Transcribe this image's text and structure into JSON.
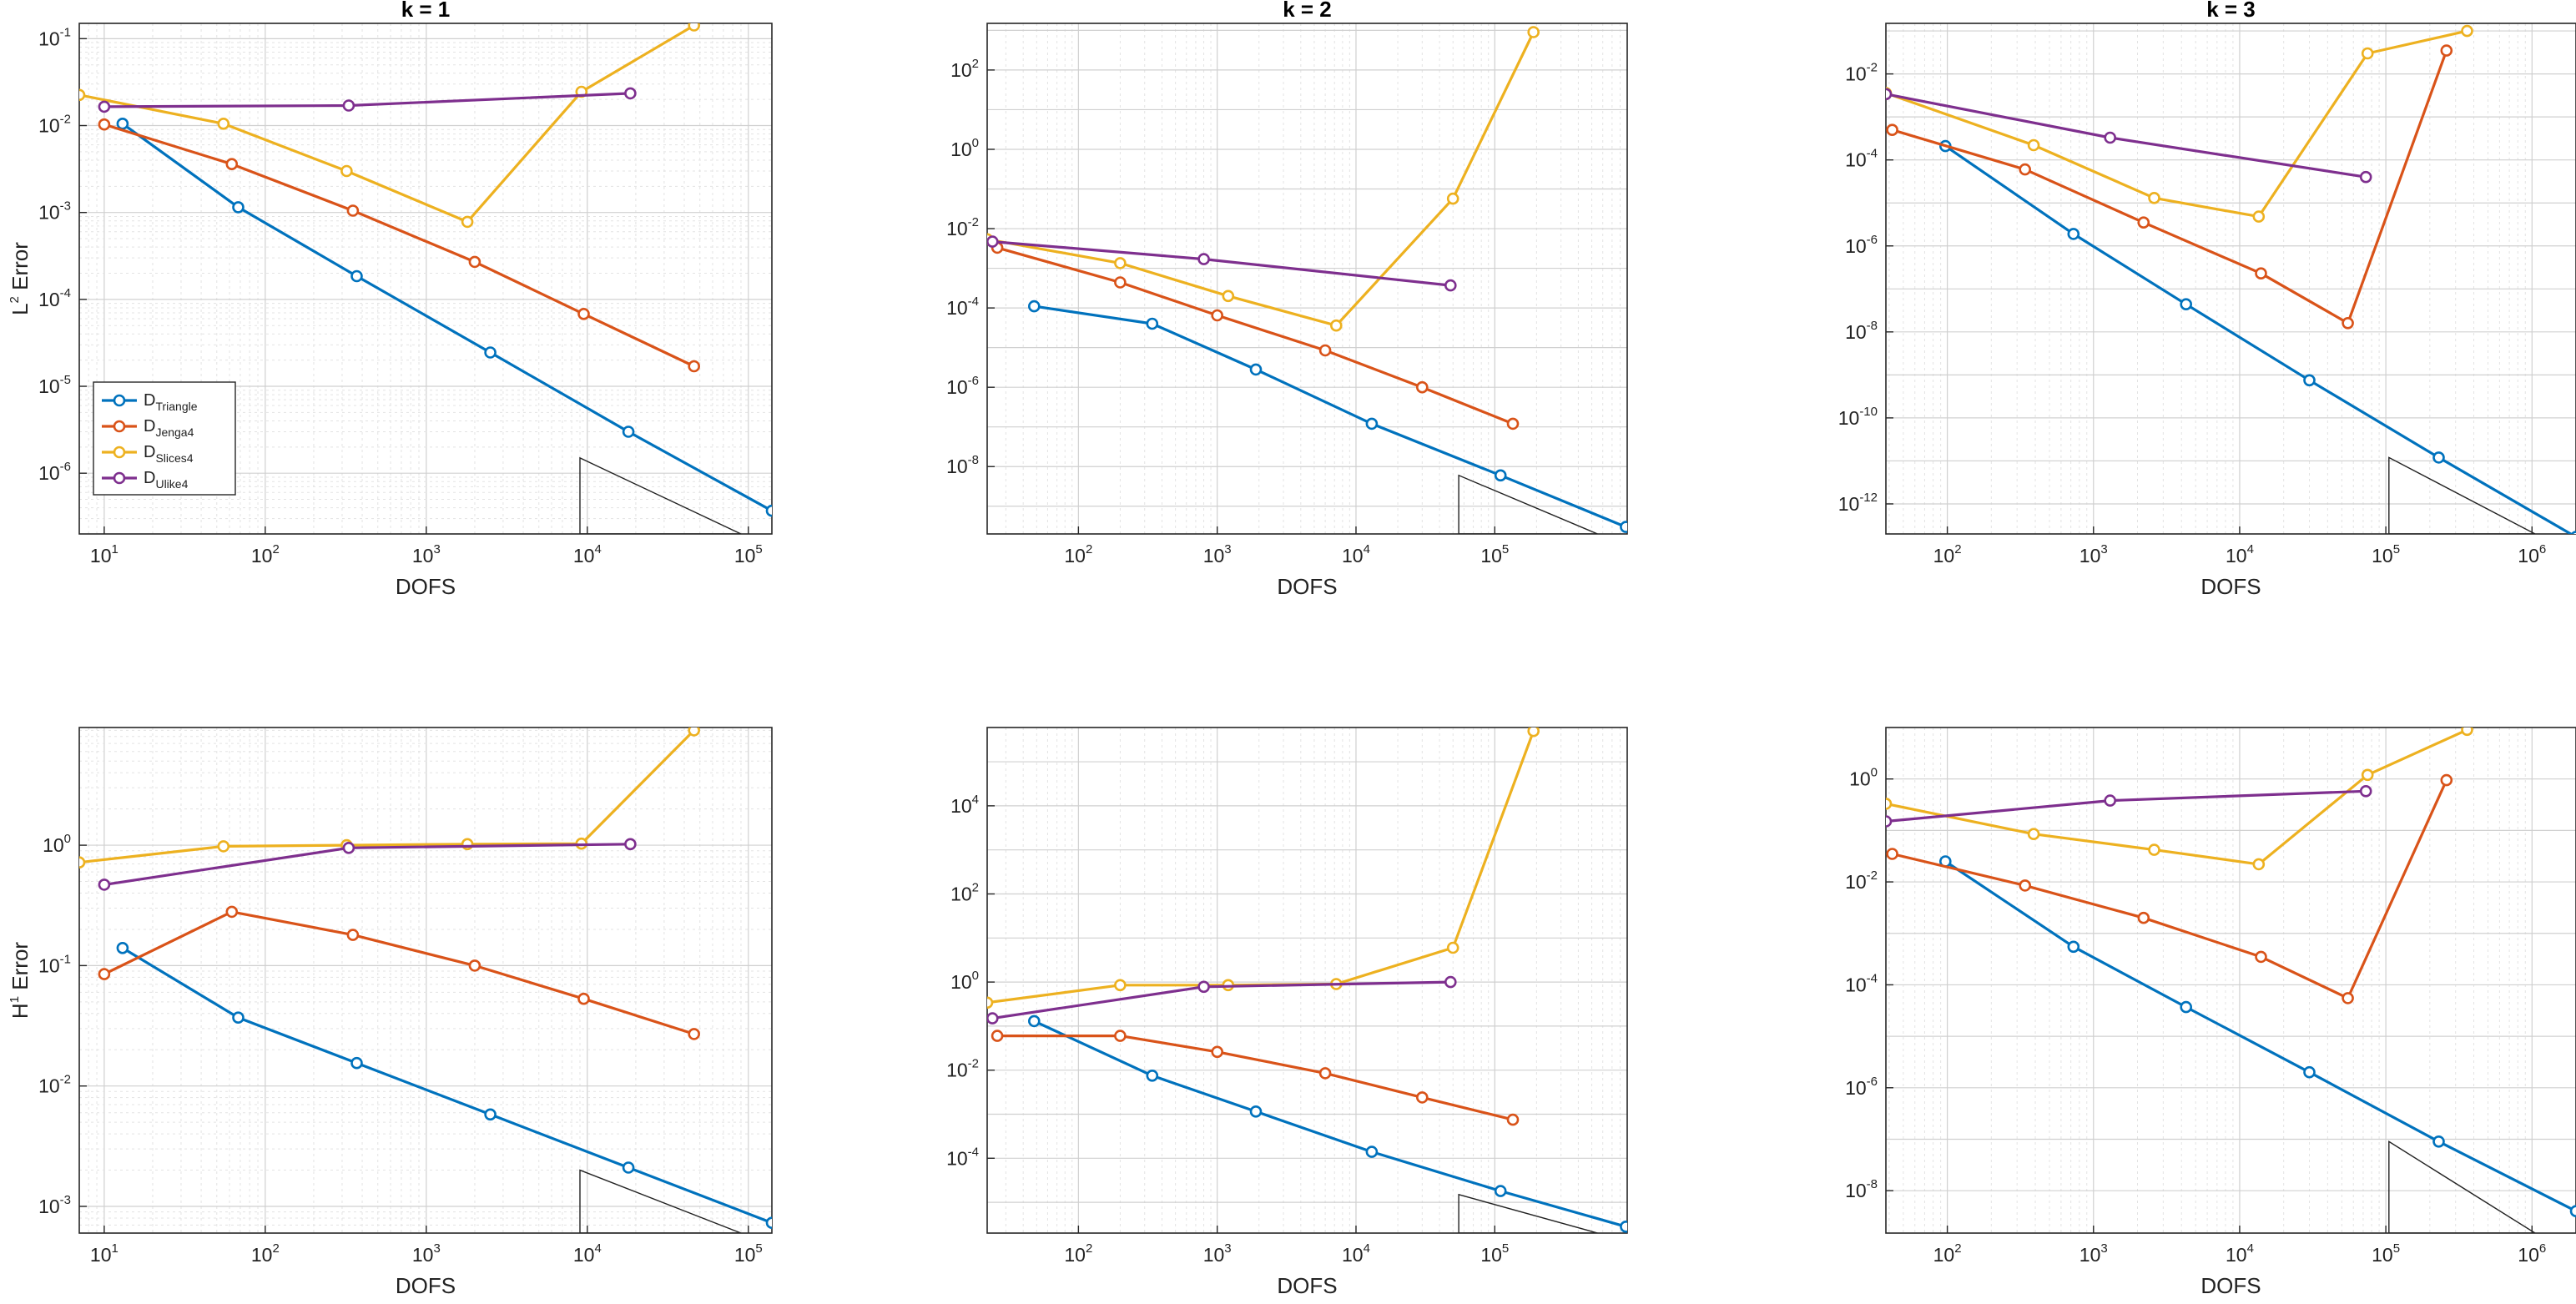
{
  "colors": {
    "D_Triangle": "#0072BD",
    "D_Jenga4": "#D95319",
    "D_Slices4": "#EDB120",
    "D_Ulike4": "#7E2F8E",
    "grid": "#e3e3e3",
    "axis": "#262626"
  },
  "legend": {
    "placement": "lower-left of top-left panel",
    "entries": [
      {
        "key": "D_Triangle",
        "base": "D",
        "sub": "Triangle"
      },
      {
        "key": "D_Jenga4",
        "base": "D",
        "sub": "Jenga4"
      },
      {
        "key": "D_Slices4",
        "base": "D",
        "sub": "Slices4"
      },
      {
        "key": "D_Ulike4",
        "base": "D",
        "sub": "Ulike4"
      }
    ]
  },
  "chart_data": [
    {
      "type": "line",
      "title": "k = 1",
      "xlabel": "DOFS",
      "ylabel": "L² Error",
      "ylabel_base": "L",
      "ylabel_sup": "2",
      "ylabel_rest": " Error",
      "xscale": "log",
      "yscale": "log",
      "grid": true,
      "xlim": [
        7,
        140000
      ],
      "ylim": [
        2e-07,
        0.15
      ],
      "xticks": [
        10,
        100,
        1000,
        10000,
        100000
      ],
      "yticks": [
        1e-06,
        1e-05,
        0.0001,
        0.001,
        0.01,
        0.1
      ],
      "slope_triangle": {
        "x0": 9000,
        "x1": 90000,
        "y_top": 1.5e-06,
        "y_bottom": 2e-07
      },
      "series": [
        {
          "key": "D_Triangle",
          "x": [
            13,
            68,
            370,
            2500,
            18000,
            140000
          ],
          "y": [
            0.0105,
            0.00115,
            0.000185,
            2.45e-05,
            3e-06,
            3.7e-07
          ]
        },
        {
          "key": "D_Jenga4",
          "x": [
            10,
            62,
            350,
            2000,
            9500,
            46000
          ],
          "y": [
            0.0103,
            0.0036,
            0.00105,
            0.00027,
            6.8e-05,
            1.7e-05
          ]
        },
        {
          "key": "D_Slices4",
          "x": [
            7,
            55,
            320,
            1800,
            9200,
            46000
          ],
          "y": [
            0.0225,
            0.0105,
            0.003,
            0.00078,
            0.0245,
            0.142
          ]
        },
        {
          "key": "D_Ulike4",
          "x": [
            10,
            330,
            18500
          ],
          "y": [
            0.0165,
            0.017,
            0.0235
          ]
        }
      ]
    },
    {
      "type": "line",
      "title": "k = 2",
      "xlabel": "DOFS",
      "ylabel": "",
      "xscale": "log",
      "yscale": "log",
      "grid": true,
      "xlim": [
        22,
        900000
      ],
      "ylim": [
        2e-10,
        1500
      ],
      "xticks": [
        100,
        1000,
        10000,
        100000
      ],
      "yticks": [
        1e-08,
        1e-06,
        0.0001,
        0.01,
        1,
        100
      ],
      "slope_triangle": {
        "x0": 55000,
        "x1": 550000,
        "y_top": 6e-09,
        "y_bottom": 2e-10
      },
      "series": [
        {
          "key": "D_Triangle",
          "x": [
            48,
            340,
            1900,
            13000,
            110000,
            880000
          ],
          "y": [
            0.00011,
            4e-05,
            2.8e-06,
            1.2e-07,
            6e-09,
            3e-10
          ]
        },
        {
          "key": "D_Jenga4",
          "x": [
            26,
            200,
            1000,
            6000,
            30000,
            135000
          ],
          "y": [
            0.0033,
            0.00044,
            6.5e-05,
            8.5e-06,
            1e-06,
            1.2e-07
          ]
        },
        {
          "key": "D_Slices4",
          "x": [
            22,
            200,
            1200,
            7200,
            50000,
            190000
          ],
          "y": [
            0.0054,
            0.00135,
            0.0002,
            3.6e-05,
            0.057,
            900
          ]
        },
        {
          "key": "D_Ulike4",
          "x": [
            24,
            800,
            48000
          ],
          "y": [
            0.0047,
            0.0017,
            0.00037
          ]
        }
      ]
    },
    {
      "type": "line",
      "title": "k = 3",
      "xlabel": "DOFS",
      "ylabel": "",
      "xscale": "log",
      "yscale": "log",
      "grid": true,
      "xlim": [
        38,
        2000000
      ],
      "ylim": [
        2e-13,
        0.15
      ],
      "xticks": [
        100,
        1000,
        10000,
        100000,
        1000000
      ],
      "yticks": [
        1e-12,
        1e-10,
        1e-08,
        1e-06,
        0.0001,
        0.01
      ],
      "slope_triangle": {
        "x0": 105000,
        "x1": 1050000,
        "y_top": 1.2e-11,
        "y_bottom": 2e-13
      },
      "series": [
        {
          "key": "D_Triangle",
          "x": [
            97,
            730,
            4300,
            30000,
            230000,
            2000000
          ],
          "y": [
            0.00021,
            1.9e-06,
            4.4e-08,
            7.5e-10,
            1.2e-11,
            1.7e-13
          ]
        },
        {
          "key": "D_Jenga4",
          "x": [
            42,
            340,
            2200,
            14000,
            55000,
            260000
          ],
          "y": [
            0.0005,
            6e-05,
            3.5e-06,
            2.3e-07,
            1.6e-08,
            0.035
          ]
        },
        {
          "key": "D_Slices4",
          "x": [
            38,
            390,
            2600,
            13500,
            75000,
            360000
          ],
          "y": [
            0.0036,
            0.00022,
            1.3e-05,
            4.8e-06,
            0.03,
            0.1
          ]
        },
        {
          "key": "D_Ulike4",
          "x": [
            38,
            1300,
            73000
          ],
          "y": [
            0.0034,
            0.00033,
            4e-05
          ]
        }
      ]
    },
    {
      "type": "line",
      "title": "",
      "xlabel": "DOFS",
      "ylabel": "H¹ Error",
      "ylabel_base": "H",
      "ylabel_sup": "1",
      "ylabel_rest": " Error",
      "xscale": "log",
      "yscale": "log",
      "grid": true,
      "xlim": [
        7,
        140000
      ],
      "ylim": [
        0.0006,
        9.5
      ],
      "xticks": [
        10,
        100,
        1000,
        10000,
        100000
      ],
      "yticks": [
        0.001,
        0.01,
        0.1,
        1
      ],
      "slope_triangle": {
        "x0": 9000,
        "x1": 90000,
        "y_top": 0.002,
        "y_bottom": 0.0006
      },
      "series": [
        {
          "key": "D_Triangle",
          "x": [
            13,
            68,
            370,
            2500,
            18000,
            140000
          ],
          "y": [
            0.14,
            0.037,
            0.0155,
            0.0058,
            0.0021,
            0.00073
          ]
        },
        {
          "key": "D_Jenga4",
          "x": [
            10,
            62,
            350,
            2000,
            9500,
            46000
          ],
          "y": [
            0.085,
            0.28,
            0.18,
            0.1,
            0.053,
            0.027
          ]
        },
        {
          "key": "D_Slices4",
          "x": [
            7,
            55,
            320,
            1800,
            9200,
            46000
          ],
          "y": [
            0.72,
            0.98,
            1,
            1.02,
            1.03,
            9
          ]
        },
        {
          "key": "D_Ulike4",
          "x": [
            10,
            330,
            18500
          ],
          "y": [
            0.47,
            0.95,
            1.02
          ]
        }
      ]
    },
    {
      "type": "line",
      "title": "",
      "xlabel": "DOFS",
      "ylabel": "",
      "xscale": "log",
      "yscale": "log",
      "grid": true,
      "xlim": [
        22,
        900000
      ],
      "ylim": [
        2e-06,
        600000
      ],
      "xticks": [
        100,
        1000,
        10000,
        100000
      ],
      "yticks": [
        0.0001,
        0.01,
        1,
        100,
        10000
      ],
      "slope_triangle": {
        "x0": 55000,
        "x1": 550000,
        "y_top": 1.5e-05,
        "y_bottom": 2e-06
      },
      "series": [
        {
          "key": "D_Triangle",
          "x": [
            48,
            340,
            1900,
            13000,
            110000,
            880000
          ],
          "y": [
            0.13,
            0.0075,
            0.00115,
            0.00014,
            1.8e-05,
            2.8e-06
          ]
        },
        {
          "key": "D_Jenga4",
          "x": [
            26,
            200,
            1000,
            6000,
            30000,
            135000
          ],
          "y": [
            0.06,
            0.06,
            0.026,
            0.0085,
            0.0024,
            0.00075
          ]
        },
        {
          "key": "D_Slices4",
          "x": [
            22,
            200,
            1200,
            7200,
            50000,
            190000
          ],
          "y": [
            0.34,
            0.85,
            0.85,
            0.9,
            6,
            500000
          ]
        },
        {
          "key": "D_Ulike4",
          "x": [
            24,
            800,
            48000
          ],
          "y": [
            0.15,
            0.78,
            1
          ]
        }
      ]
    },
    {
      "type": "line",
      "title": "",
      "xlabel": "DOFS",
      "ylabel": "",
      "xscale": "log",
      "yscale": "log",
      "grid": true,
      "xlim": [
        38,
        2000000
      ],
      "ylim": [
        1.5e-09,
        10
      ],
      "xticks": [
        100,
        1000,
        10000,
        100000,
        1000000
      ],
      "yticks": [
        1e-08,
        1e-06,
        0.0001,
        0.01,
        1
      ],
      "slope_triangle": {
        "x0": 105000,
        "x1": 1050000,
        "y_top": 9e-08,
        "y_bottom": 1.5e-09
      },
      "series": [
        {
          "key": "D_Triangle",
          "x": [
            97,
            730,
            4300,
            30000,
            230000,
            2000000
          ],
          "y": [
            0.025,
            0.00055,
            3.7e-05,
            2e-06,
            9e-08,
            4e-09
          ]
        },
        {
          "key": "D_Jenga4",
          "x": [
            42,
            340,
            2200,
            14000,
            55000,
            260000
          ],
          "y": [
            0.035,
            0.0085,
            0.002,
            0.00035,
            5.5e-05,
            0.95
          ]
        },
        {
          "key": "D_Slices4",
          "x": [
            38,
            390,
            2600,
            13500,
            75000,
            360000
          ],
          "y": [
            0.33,
            0.085,
            0.042,
            0.022,
            1.2,
            9
          ]
        },
        {
          "key": "D_Ulike4",
          "x": [
            38,
            1300,
            73000
          ],
          "y": [
            0.15,
            0.38,
            0.58
          ]
        }
      ]
    }
  ]
}
